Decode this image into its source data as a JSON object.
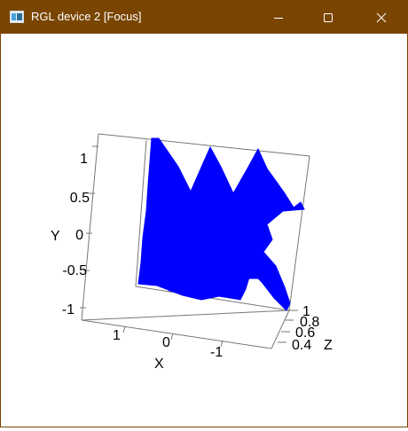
{
  "window": {
    "title": "RGL device 2 [Focus]",
    "titlebar_color": "#7a4500",
    "controls": {
      "minimize_icon": "minimize-icon",
      "maximize_icon": "maximize-icon",
      "close_icon": "close-icon"
    }
  },
  "plot": {
    "type": "3d-surface",
    "surface_color": "#0000ff",
    "axes": {
      "x": {
        "label": "X",
        "ticks": [
          "1",
          "0",
          "-1"
        ]
      },
      "y": {
        "label": "Y",
        "ticks": [
          "1",
          "0.5",
          "0",
          "-0.5",
          "-1"
        ]
      },
      "z": {
        "label": "Z",
        "ticks": [
          "1",
          "0.8",
          "0.6",
          "0.4"
        ]
      }
    }
  }
}
